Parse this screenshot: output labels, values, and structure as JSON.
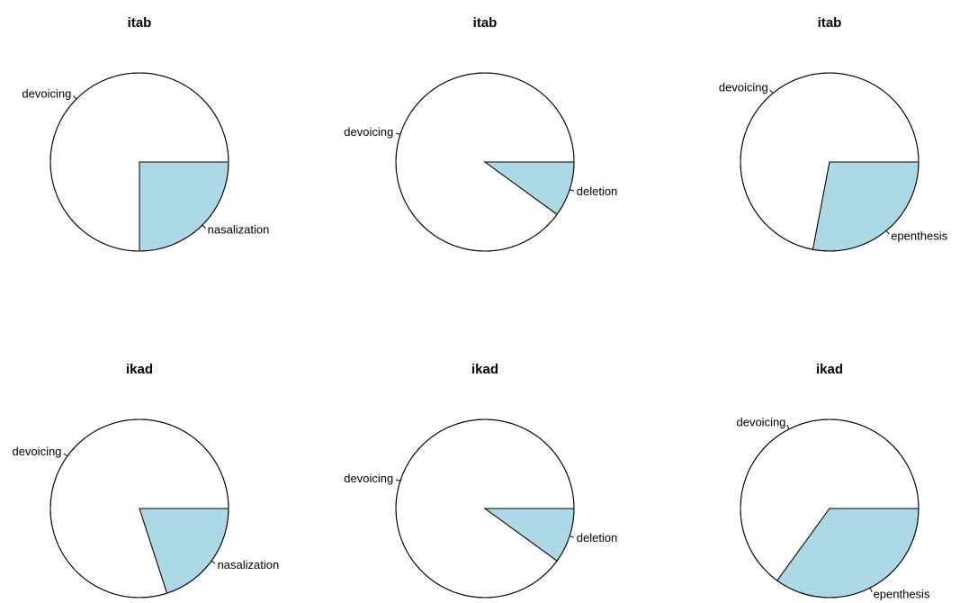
{
  "chart_data": [
    {
      "type": "pie",
      "title": "itab",
      "slices": [
        {
          "label": "devoicing",
          "value": 0.75,
          "color": "#ffffff"
        },
        {
          "label": "nasalization",
          "value": 0.25,
          "color": "#add8e6"
        }
      ]
    },
    {
      "type": "pie",
      "title": "itab",
      "slices": [
        {
          "label": "devoicing",
          "value": 0.9,
          "color": "#ffffff"
        },
        {
          "label": "deletion",
          "value": 0.1,
          "color": "#add8e6"
        }
      ]
    },
    {
      "type": "pie",
      "title": "itab",
      "slices": [
        {
          "label": "devoicing",
          "value": 0.72,
          "color": "#ffffff"
        },
        {
          "label": "epenthesis",
          "value": 0.28,
          "color": "#add8e6"
        }
      ]
    },
    {
      "type": "pie",
      "title": "ikad",
      "slices": [
        {
          "label": "devoicing",
          "value": 0.8,
          "color": "#ffffff"
        },
        {
          "label": "nasalization",
          "value": 0.2,
          "color": "#add8e6"
        }
      ]
    },
    {
      "type": "pie",
      "title": "ikad",
      "slices": [
        {
          "label": "devoicing",
          "value": 0.9,
          "color": "#ffffff"
        },
        {
          "label": "deletion",
          "value": 0.1,
          "color": "#add8e6"
        }
      ]
    },
    {
      "type": "pie",
      "title": "ikad",
      "slices": [
        {
          "label": "devoicing",
          "value": 0.65,
          "color": "#ffffff"
        },
        {
          "label": "epenthesis",
          "value": 0.35,
          "color": "#add8e6"
        }
      ]
    }
  ]
}
